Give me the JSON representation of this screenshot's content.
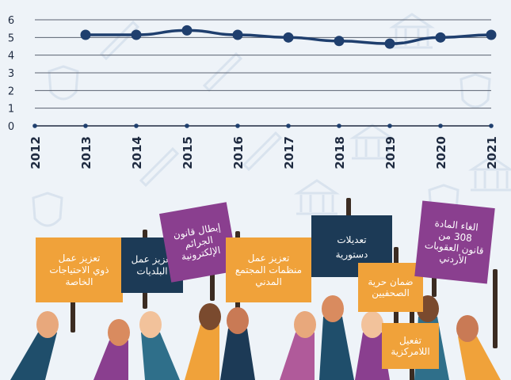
{
  "chart_data": {
    "type": "line",
    "x": [
      "2012",
      "2013",
      "2014",
      "2015",
      "2016",
      "2017",
      "2018",
      "2019",
      "2020",
      "2021"
    ],
    "series": [
      {
        "values": [
          null,
          5.15,
          5.15,
          5.4,
          5.15,
          5.0,
          4.8,
          4.65,
          5.0,
          5.15
        ]
      }
    ],
    "yticks": [
      "0",
      "1",
      "2",
      "3",
      "4",
      "5",
      "6"
    ],
    "ylim": [
      0,
      6
    ],
    "grid": true,
    "line_color": "#1f3f6e",
    "title": "",
    "xlabel": "",
    "ylabel": ""
  },
  "signs": [
    {
      "id": "sign-special-needs",
      "lines": [
        "تعزيز عمل",
        "ذوي الاحتياجات",
        "الخاصة"
      ],
      "color": "#f0a23a"
    },
    {
      "id": "sign-municipalities",
      "lines": [
        "تعزيز عمل",
        "البلديات"
      ],
      "color": "#1c3a56"
    },
    {
      "id": "sign-cybercrime",
      "lines": [
        "إبطال قانون",
        "الجرائم",
        "الإلكترونية"
      ],
      "color": "#8a3f8f"
    },
    {
      "id": "sign-civil-society",
      "lines": [
        "تعزيز عمل",
        "منظمات المجتمع",
        "المدني"
      ],
      "color": "#f0a23a"
    },
    {
      "id": "sign-constitutional",
      "lines": [
        "تعديلات",
        "دستورية"
      ],
      "color": "#1c3a56"
    },
    {
      "id": "sign-journalists",
      "lines": [
        "ضمان حرية",
        "الصحفيين"
      ],
      "color": "#f0a23a"
    },
    {
      "id": "sign-article-308",
      "lines": [
        "الغاء المادة",
        "308 من",
        "قانون العقوبات",
        "الأردني"
      ],
      "color": "#8a3f8f"
    },
    {
      "id": "sign-decentralization",
      "lines": [
        "تفعيل",
        "اللامركزية"
      ],
      "color": "#f0a23a"
    }
  ]
}
